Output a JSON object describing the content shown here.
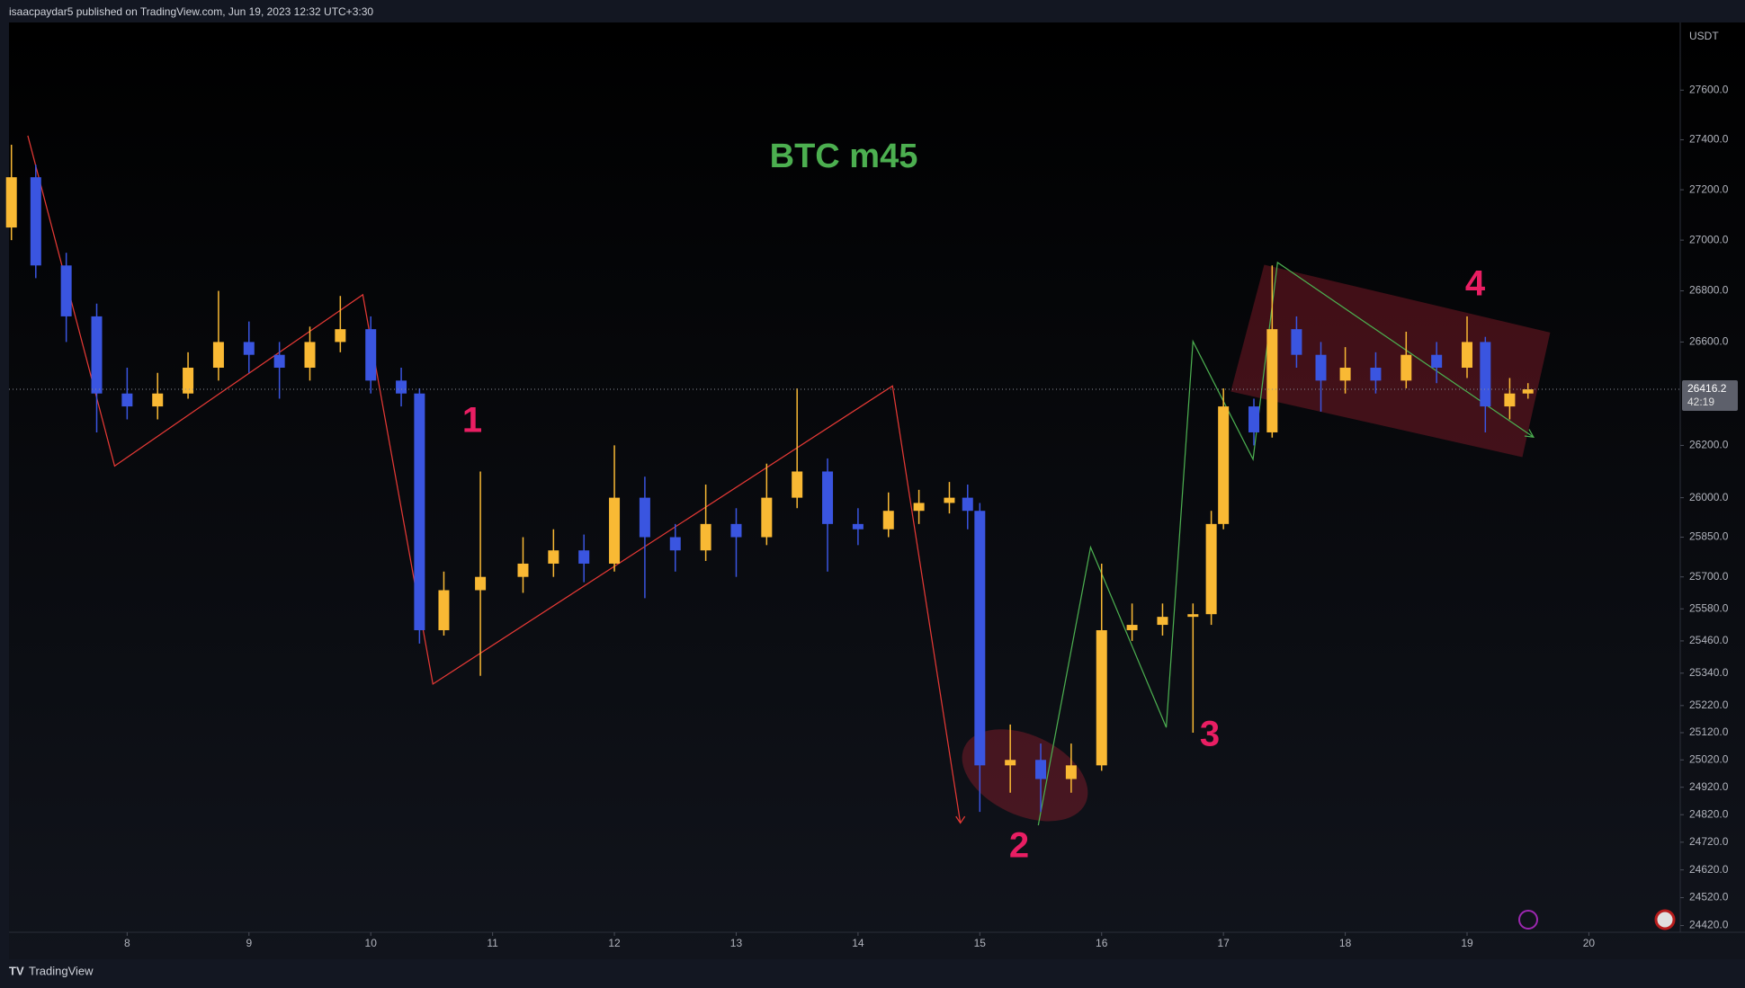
{
  "header": {
    "text": "isaacpaydar5 published on TradingView.com, Jun 19, 2023 12:32 UTC+3:30"
  },
  "footer": {
    "brand": "TradingView"
  },
  "chart_data": {
    "type": "candlestick",
    "title": "BTC m45",
    "y_axis_label": "USDT",
    "annotations": [
      "1",
      "2",
      "3",
      "4"
    ],
    "log_scale": true,
    "up_color": "#f9b934",
    "down_color": "#3a55e0",
    "x": [
      7.05,
      7.25,
      7.5,
      7.75,
      8.0,
      8.25,
      8.5,
      8.75,
      9.0,
      9.25,
      9.5,
      9.75,
      10.0,
      10.25,
      10.4,
      10.6,
      10.9,
      11.25,
      11.5,
      11.75,
      12.0,
      12.25,
      12.5,
      12.75,
      13.0,
      13.25,
      13.5,
      13.75,
      14.0,
      14.25,
      14.5,
      14.75,
      14.9,
      15.0,
      15.25,
      15.5,
      15.75,
      16.0,
      16.25,
      16.5,
      16.75,
      16.9,
      17.0,
      17.25,
      17.4,
      17.6,
      17.8,
      18.0,
      18.25,
      18.5,
      18.75,
      19.0,
      19.15,
      19.35,
      19.5
    ],
    "open": [
      27050,
      27250,
      26900,
      26700,
      26400,
      26350,
      26400,
      26500,
      26600,
      26550,
      26500,
      26600,
      26650,
      26450,
      26400,
      25500,
      25650,
      25700,
      25750,
      25800,
      25750,
      26000,
      25850,
      25800,
      25900,
      25850,
      26000,
      26100,
      25900,
      25880,
      25950,
      25980,
      26000,
      25950,
      25000,
      25020,
      24950,
      25000,
      25500,
      25520,
      25550,
      25560,
      25900,
      26350,
      26250,
      26650,
      26550,
      26450,
      26500,
      26450,
      26550,
      26500,
      26600,
      26350,
      26400
    ],
    "high": [
      27380,
      27300,
      26950,
      26750,
      26500,
      26480,
      26560,
      26800,
      26680,
      26600,
      26660,
      26780,
      26700,
      26500,
      26420,
      25720,
      26100,
      25850,
      25880,
      25860,
      26200,
      26080,
      25900,
      26050,
      25960,
      26130,
      26420,
      26150,
      25960,
      26020,
      26030,
      26060,
      26050,
      25980,
      25150,
      25080,
      25080,
      25750,
      25600,
      25600,
      25600,
      25950,
      26420,
      26380,
      26900,
      26700,
      26600,
      26580,
      26560,
      26640,
      26600,
      26700,
      26620,
      26460,
      26440
    ],
    "low": [
      27000,
      26850,
      26600,
      26250,
      26300,
      26300,
      26380,
      26450,
      26480,
      26380,
      26450,
      26560,
      26400,
      26350,
      25450,
      25480,
      25330,
      25640,
      25700,
      25680,
      25720,
      25620,
      25720,
      25760,
      25700,
      25820,
      25960,
      25720,
      25820,
      25850,
      25900,
      25940,
      25880,
      24830,
      24900,
      24830,
      24900,
      24980,
      25460,
      25480,
      25120,
      25520,
      25880,
      26200,
      26230,
      26500,
      26330,
      26400,
      26400,
      26420,
      26440,
      26460,
      26250,
      26300,
      26380
    ],
    "close": [
      27250,
      26900,
      26700,
      26400,
      26350,
      26400,
      26500,
      26600,
      26550,
      26500,
      26600,
      26650,
      26450,
      26400,
      25500,
      25650,
      25700,
      25750,
      25800,
      25750,
      26000,
      25850,
      25800,
      25900,
      25850,
      26000,
      26100,
      25900,
      25880,
      25950,
      25980,
      26000,
      25950,
      25000,
      25020,
      24950,
      25000,
      25500,
      25520,
      25550,
      25560,
      25900,
      26350,
      26250,
      26650,
      26550,
      26450,
      26500,
      26450,
      26550,
      26500,
      26600,
      26350,
      26400,
      26416.2
    ],
    "last_price": {
      "value": 26416.2,
      "label": "26416.2"
    },
    "countdown": "42:19",
    "xlim": [
      7.03,
      20.75
    ],
    "ylim": [
      24396,
      27875
    ],
    "xticks": [
      8,
      9,
      10,
      11,
      12,
      13,
      14,
      15,
      16,
      17,
      18,
      19,
      20
    ],
    "yticks": [
      {
        "value": 27600,
        "label": "27600.0"
      },
      {
        "value": 27400,
        "label": "27400.0"
      },
      {
        "value": 27200,
        "label": "27200.0"
      },
      {
        "value": 27000,
        "label": "27000.0"
      },
      {
        "value": 26800,
        "label": "26800.0"
      },
      {
        "value": 26600,
        "label": "26600.0"
      },
      {
        "value": 26200,
        "label": "26200.0"
      },
      {
        "value": 26000,
        "label": "26000.0"
      },
      {
        "value": 25850,
        "label": "25850.0"
      },
      {
        "value": 25700,
        "label": "25700.0"
      },
      {
        "value": 25580,
        "label": "25580.0"
      },
      {
        "value": 25460,
        "label": "25460.0"
      },
      {
        "value": 25340,
        "label": "25340.0"
      },
      {
        "value": 25220,
        "label": "25220.0"
      },
      {
        "value": 25120,
        "label": "25120.0"
      },
      {
        "value": 25020,
        "label": "25020.0"
      },
      {
        "value": 24920,
        "label": "24920.0"
      },
      {
        "value": 24820,
        "label": "24820.0"
      },
      {
        "value": 24720,
        "label": "24720.0"
      },
      {
        "value": 24620,
        "label": "24620.0"
      },
      {
        "value": 24520,
        "label": "24520.0"
      },
      {
        "value": 24420,
        "label": "24420.0"
      }
    ]
  }
}
